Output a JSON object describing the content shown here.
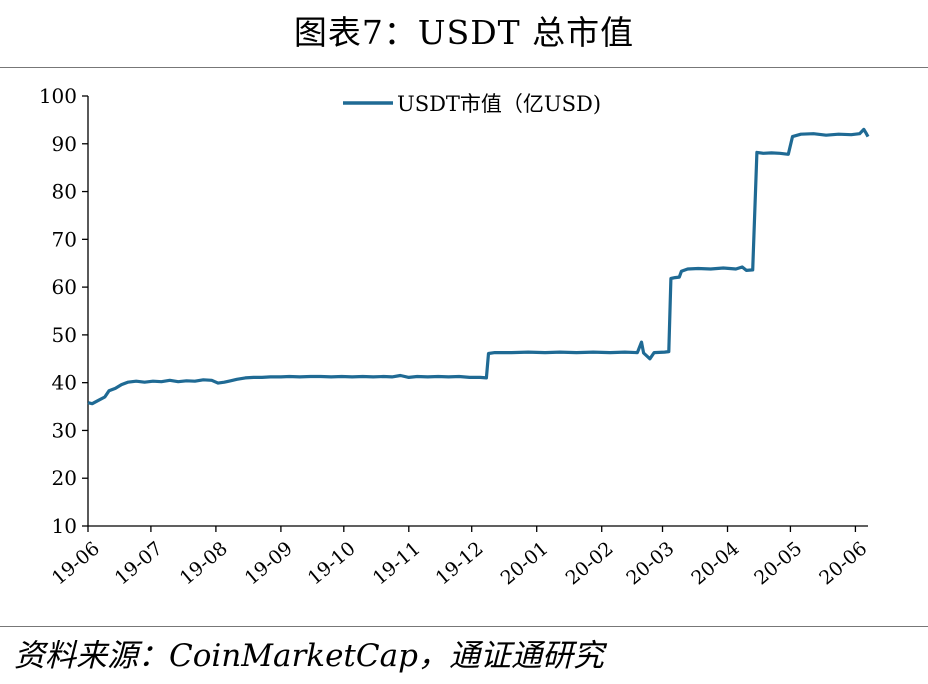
{
  "header": {
    "title": "图表7：USDT 总市值"
  },
  "footer": {
    "source": "资料来源：CoinMarketCap，通证通研究"
  },
  "colors": {
    "series": "#1f6a94",
    "axis": "#000000",
    "rule": "#777777"
  },
  "chart_data": {
    "type": "line",
    "title": "",
    "xlabel": "",
    "ylabel": "",
    "ylim": [
      10,
      100
    ],
    "yticks": [
      10,
      20,
      30,
      40,
      50,
      60,
      70,
      80,
      90,
      100
    ],
    "xlim": [
      "2019-06-01",
      "2020-06-07"
    ],
    "xticks": [
      {
        "date": "2019-06-01",
        "label": "19-06"
      },
      {
        "date": "2019-07-01",
        "label": "19-07"
      },
      {
        "date": "2019-08-01",
        "label": "19-08"
      },
      {
        "date": "2019-09-01",
        "label": "19-09"
      },
      {
        "date": "2019-10-01",
        "label": "19-10"
      },
      {
        "date": "2019-11-01",
        "label": "19-11"
      },
      {
        "date": "2019-12-01",
        "label": "19-12"
      },
      {
        "date": "2020-01-01",
        "label": "20-01"
      },
      {
        "date": "2020-02-01",
        "label": "20-02"
      },
      {
        "date": "2020-03-01",
        "label": "20-03"
      },
      {
        "date": "2020-04-01",
        "label": "20-04"
      },
      {
        "date": "2020-05-01",
        "label": "20-05"
      },
      {
        "date": "2020-06-01",
        "label": "20-06"
      }
    ],
    "legend": "top-center",
    "grid": false,
    "series": [
      {
        "name": "USDT市值（亿USD)",
        "points": [
          [
            "2019-06-01",
            35.8
          ],
          [
            "2019-06-03",
            35.6
          ],
          [
            "2019-06-06",
            36.3
          ],
          [
            "2019-06-09",
            37.0
          ],
          [
            "2019-06-11",
            38.3
          ],
          [
            "2019-06-14",
            38.8
          ],
          [
            "2019-06-17",
            39.6
          ],
          [
            "2019-06-20",
            40.1
          ],
          [
            "2019-06-24",
            40.3
          ],
          [
            "2019-06-28",
            40.1
          ],
          [
            "2019-07-02",
            40.3
          ],
          [
            "2019-07-06",
            40.2
          ],
          [
            "2019-07-10",
            40.5
          ],
          [
            "2019-07-14",
            40.2
          ],
          [
            "2019-07-18",
            40.4
          ],
          [
            "2019-07-22",
            40.3
          ],
          [
            "2019-07-26",
            40.6
          ],
          [
            "2019-07-30",
            40.5
          ],
          [
            "2019-08-02",
            39.9
          ],
          [
            "2019-08-05",
            40.1
          ],
          [
            "2019-08-08",
            40.4
          ],
          [
            "2019-08-11",
            40.7
          ],
          [
            "2019-08-15",
            41.0
          ],
          [
            "2019-08-19",
            41.1
          ],
          [
            "2019-08-23",
            41.1
          ],
          [
            "2019-08-27",
            41.2
          ],
          [
            "2019-09-01",
            41.2
          ],
          [
            "2019-09-05",
            41.3
          ],
          [
            "2019-09-10",
            41.2
          ],
          [
            "2019-09-15",
            41.3
          ],
          [
            "2019-09-20",
            41.3
          ],
          [
            "2019-09-25",
            41.2
          ],
          [
            "2019-09-30",
            41.3
          ],
          [
            "2019-10-05",
            41.2
          ],
          [
            "2019-10-10",
            41.3
          ],
          [
            "2019-10-15",
            41.2
          ],
          [
            "2019-10-20",
            41.3
          ],
          [
            "2019-10-24",
            41.2
          ],
          [
            "2019-10-28",
            41.5
          ],
          [
            "2019-11-01",
            41.1
          ],
          [
            "2019-11-05",
            41.3
          ],
          [
            "2019-11-10",
            41.2
          ],
          [
            "2019-11-15",
            41.3
          ],
          [
            "2019-11-20",
            41.2
          ],
          [
            "2019-11-25",
            41.3
          ],
          [
            "2019-11-30",
            41.1
          ],
          [
            "2019-12-05",
            41.1
          ],
          [
            "2019-12-08",
            41.0
          ],
          [
            "2019-12-09",
            46.1
          ],
          [
            "2019-12-12",
            46.3
          ],
          [
            "2019-12-20",
            46.3
          ],
          [
            "2019-12-28",
            46.4
          ],
          [
            "2020-01-05",
            46.3
          ],
          [
            "2020-01-12",
            46.4
          ],
          [
            "2020-01-20",
            46.3
          ],
          [
            "2020-01-28",
            46.4
          ],
          [
            "2020-02-05",
            46.3
          ],
          [
            "2020-02-12",
            46.4
          ],
          [
            "2020-02-18",
            46.3
          ],
          [
            "2020-02-20",
            48.5
          ],
          [
            "2020-02-21",
            46.2
          ],
          [
            "2020-02-24",
            45.0
          ],
          [
            "2020-02-26",
            46.3
          ],
          [
            "2020-03-02",
            46.4
          ],
          [
            "2020-03-04",
            46.5
          ],
          [
            "2020-03-05",
            61.8
          ],
          [
            "2020-03-07",
            62.0
          ],
          [
            "2020-03-09",
            62.1
          ],
          [
            "2020-03-10",
            63.3
          ],
          [
            "2020-03-13",
            63.8
          ],
          [
            "2020-03-18",
            63.9
          ],
          [
            "2020-03-24",
            63.8
          ],
          [
            "2020-03-30",
            64.0
          ],
          [
            "2020-04-05",
            63.8
          ],
          [
            "2020-04-08",
            64.2
          ],
          [
            "2020-04-10",
            63.5
          ],
          [
            "2020-04-13",
            63.6
          ],
          [
            "2020-04-15",
            88.2
          ],
          [
            "2020-04-18",
            88.0
          ],
          [
            "2020-04-22",
            88.1
          ],
          [
            "2020-04-26",
            88.0
          ],
          [
            "2020-04-30",
            87.8
          ],
          [
            "2020-05-02",
            91.5
          ],
          [
            "2020-05-06",
            92.0
          ],
          [
            "2020-05-12",
            92.1
          ],
          [
            "2020-05-18",
            91.8
          ],
          [
            "2020-05-24",
            92.0
          ],
          [
            "2020-05-30",
            91.9
          ],
          [
            "2020-06-03",
            92.1
          ],
          [
            "2020-06-05",
            93.0
          ],
          [
            "2020-06-06",
            92.3
          ],
          [
            "2020-06-07",
            91.5
          ]
        ]
      }
    ]
  }
}
